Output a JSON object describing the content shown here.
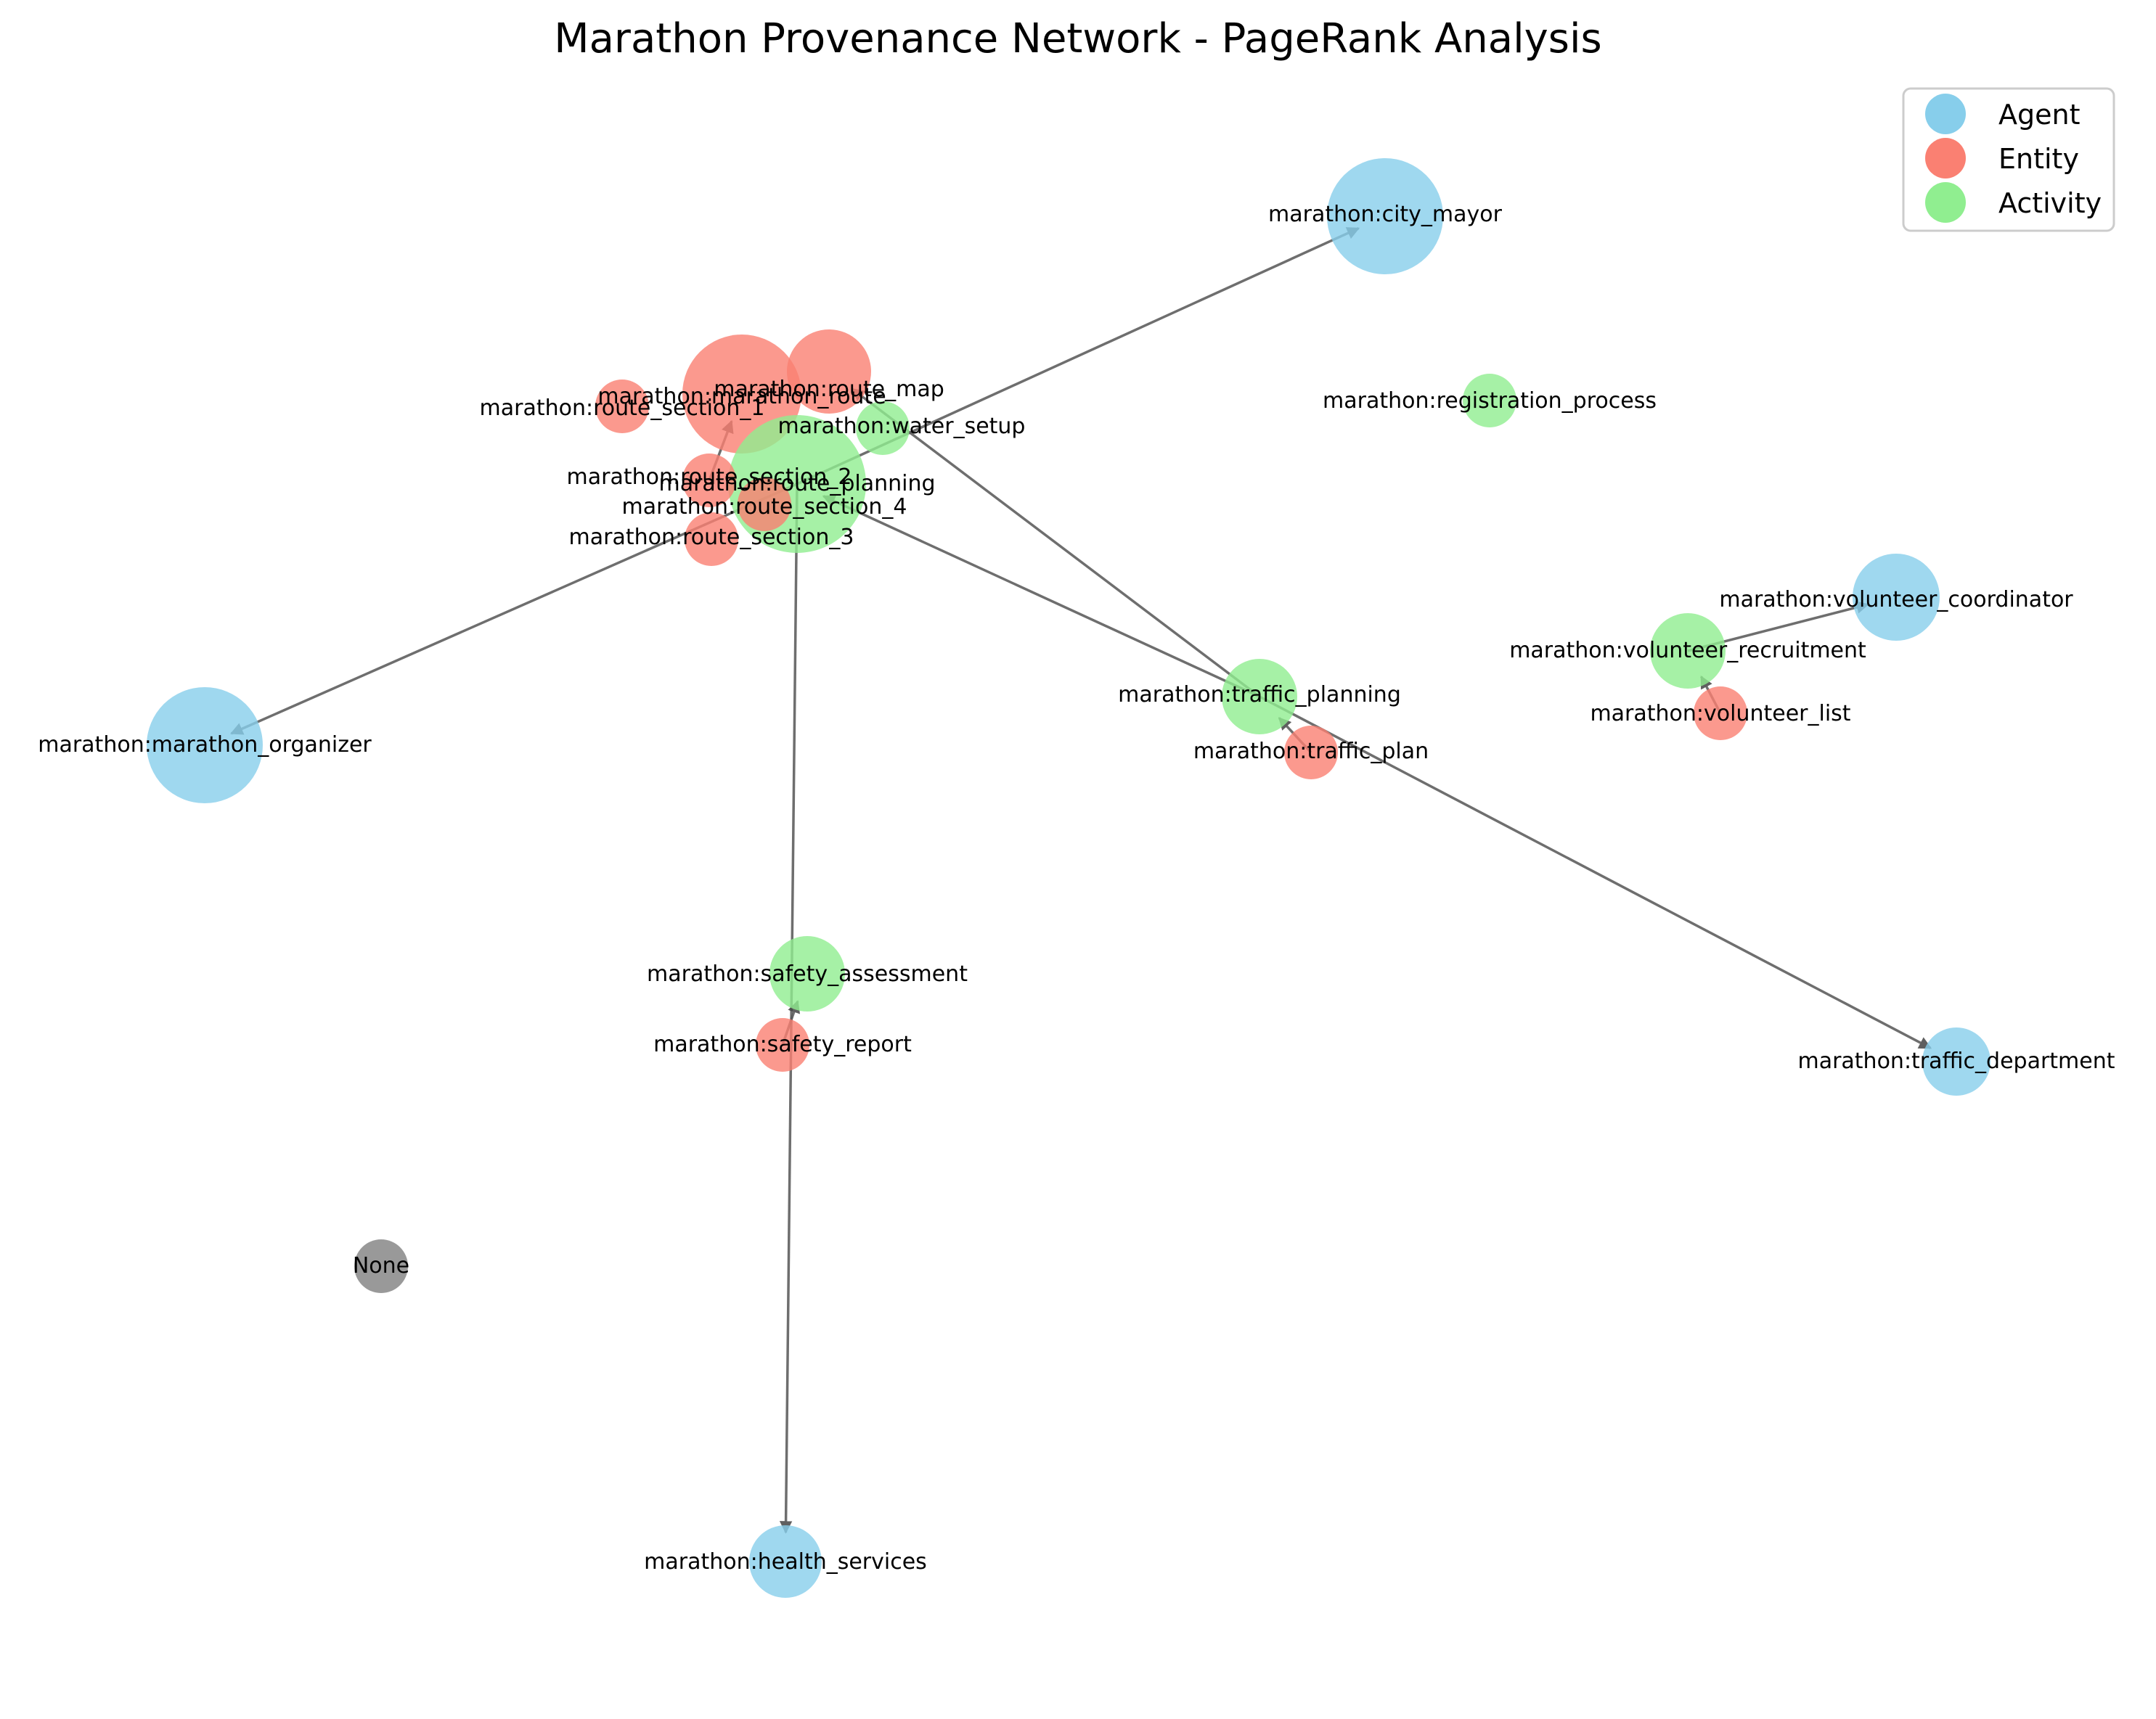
{
  "title": "Marathon Provenance Network - PageRank Analysis",
  "colors": {
    "Agent": "#87CEEB",
    "Entity": "#FA8072",
    "Activity": "#90EE90",
    "Unknown": "#808080"
  },
  "legend": [
    "Agent",
    "Entity",
    "Activity"
  ],
  "nodes": [
    {
      "id": "marathon:city_mayor",
      "type": "Agent"
    },
    {
      "id": "marathon:marathon_route",
      "type": "Entity"
    },
    {
      "id": "marathon:route_map",
      "type": "Entity"
    },
    {
      "id": "marathon:route_section_1",
      "type": "Entity"
    },
    {
      "id": "marathon:water_setup",
      "type": "Activity"
    },
    {
      "id": "marathon:registration_process",
      "type": "Activity"
    },
    {
      "id": "marathon:route_planning",
      "type": "Activity"
    },
    {
      "id": "marathon:route_section_2",
      "type": "Entity"
    },
    {
      "id": "marathon:route_section_4",
      "type": "Entity"
    },
    {
      "id": "marathon:route_section_3",
      "type": "Entity"
    },
    {
      "id": "marathon:volunteer_coordinator",
      "type": "Agent"
    },
    {
      "id": "marathon:volunteer_recruitment",
      "type": "Activity"
    },
    {
      "id": "marathon:volunteer_list",
      "type": "Entity"
    },
    {
      "id": "marathon:traffic_planning",
      "type": "Activity"
    },
    {
      "id": "marathon:traffic_plan",
      "type": "Entity"
    },
    {
      "id": "marathon:marathon_organizer",
      "type": "Agent"
    },
    {
      "id": "marathon:safety_assessment",
      "type": "Activity"
    },
    {
      "id": "marathon:safety_report",
      "type": "Entity"
    },
    {
      "id": "marathon:traffic_department",
      "type": "Agent"
    },
    {
      "id": "None",
      "type": "Unknown"
    },
    {
      "id": "marathon:health_services",
      "type": "Agent"
    }
  ],
  "edges": [
    {
      "source": "marathon:route_planning",
      "target": "marathon:city_mayor"
    },
    {
      "source": "marathon:route_planning",
      "target": "marathon:marathon_organizer"
    },
    {
      "source": "marathon:route_planning",
      "target": "marathon:health_services"
    },
    {
      "source": "marathon:traffic_planning",
      "target": "marathon:route_planning"
    },
    {
      "source": "marathon:traffic_planning",
      "target": "marathon:route_map"
    },
    {
      "source": "marathon:traffic_planning",
      "target": "marathon:traffic_department"
    },
    {
      "source": "marathon:traffic_plan",
      "target": "marathon:traffic_planning"
    },
    {
      "source": "marathon:safety_report",
      "target": "marathon:safety_assessment"
    },
    {
      "source": "marathon:volunteer_recruitment",
      "target": "marathon:volunteer_coordinator"
    },
    {
      "source": "marathon:volunteer_list",
      "target": "marathon:volunteer_recruitment"
    },
    {
      "source": "marathon:route_section_2",
      "target": "marathon:marathon_route"
    }
  ]
}
